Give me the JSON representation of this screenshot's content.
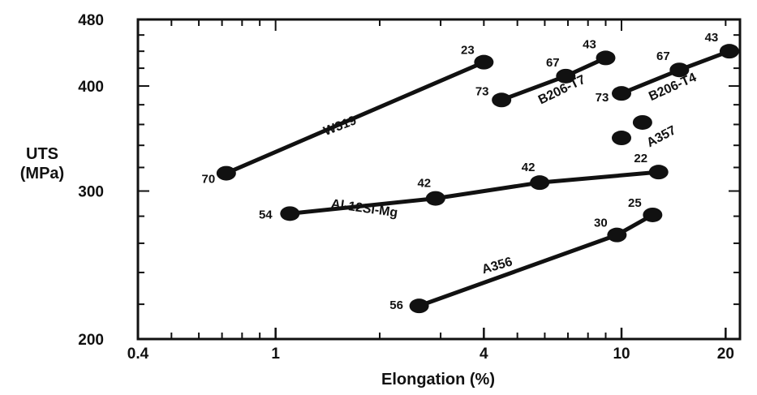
{
  "chart_data": {
    "type": "scatter",
    "xlabel": "Elongation (%)",
    "ylabel_line1": "UTS",
    "ylabel_line2": "(MPa)",
    "x_scale": "log",
    "y_scale": "log",
    "xlim": [
      0.4,
      22
    ],
    "ylim": [
      200,
      480
    ],
    "x_ticks": [
      {
        "value": 0.4,
        "label": "0.4"
      },
      {
        "value": 1,
        "label": "1"
      },
      {
        "value": 4,
        "label": "4"
      },
      {
        "value": 10,
        "label": "10"
      },
      {
        "value": 20,
        "label": "20"
      }
    ],
    "y_ticks": [
      {
        "value": 200,
        "label": "200"
      },
      {
        "value": 300,
        "label": "300"
      },
      {
        "value": 400,
        "label": "400"
      },
      {
        "value": 480,
        "label": "480"
      }
    ],
    "grid": false,
    "series": [
      {
        "name": "W319",
        "connected": true,
        "points": [
          {
            "x": 0.72,
            "y": 315,
            "label": "70"
          },
          {
            "x": 4.0,
            "y": 427,
            "label": "23"
          }
        ]
      },
      {
        "name": "B206-T7",
        "connected": true,
        "points": [
          {
            "x": 4.5,
            "y": 385,
            "label": "73"
          },
          {
            "x": 6.9,
            "y": 411,
            "label": "67"
          },
          {
            "x": 9.0,
            "y": 432,
            "label": "43"
          }
        ]
      },
      {
        "name": "B206-T4",
        "connected": true,
        "points": [
          {
            "x": 10.0,
            "y": 392,
            "label": "73"
          },
          {
            "x": 14.7,
            "y": 418,
            "label": "67"
          },
          {
            "x": 20.5,
            "y": 440,
            "label": "43"
          }
        ]
      },
      {
        "name": "A357",
        "connected": false,
        "points": [
          {
            "x": 10.0,
            "y": 347,
            "label": ""
          },
          {
            "x": 11.5,
            "y": 362,
            "label": ""
          }
        ]
      },
      {
        "name": "Al-12Si-Mg",
        "connected": true,
        "points": [
          {
            "x": 1.1,
            "y": 282,
            "label": "54"
          },
          {
            "x": 2.9,
            "y": 294,
            "label": "42"
          },
          {
            "x": 5.8,
            "y": 307,
            "label": "42"
          },
          {
            "x": 12.8,
            "y": 316,
            "label": "22"
          }
        ]
      },
      {
        "name": "A356",
        "connected": true,
        "points": [
          {
            "x": 2.6,
            "y": 219,
            "label": "56"
          },
          {
            "x": 9.7,
            "y": 266,
            "label": "30"
          },
          {
            "x": 12.3,
            "y": 281,
            "label": "25"
          }
        ]
      }
    ]
  }
}
